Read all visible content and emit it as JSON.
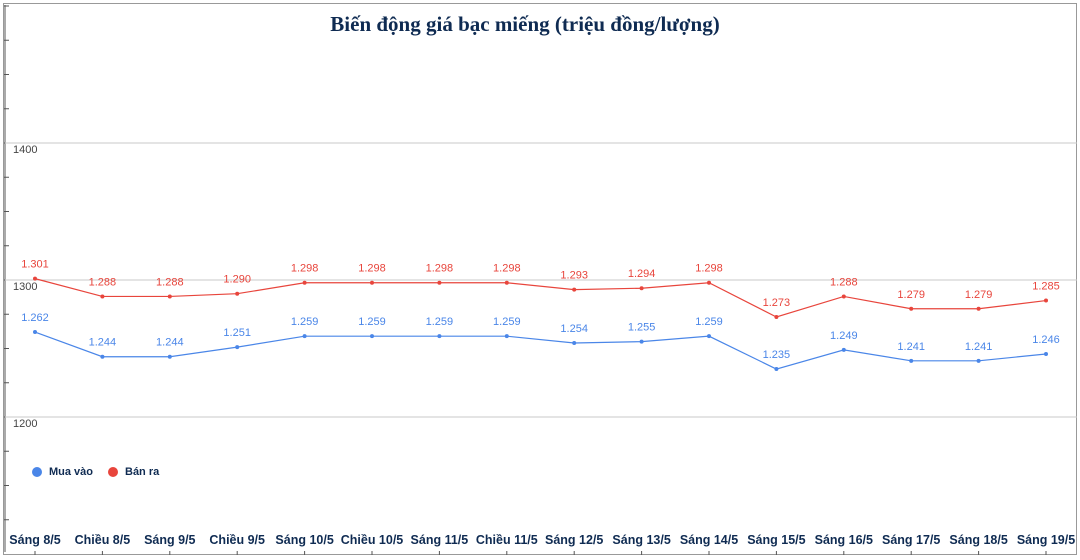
{
  "chart_data": {
    "type": "line",
    "title": "Biến động giá bạc miếng (triệu đồng/lượng)",
    "xlabel": "",
    "ylabel": "",
    "categories": [
      "Sáng 8/5",
      "Chiều 8/5",
      "Sáng 9/5",
      "Chiều 9/5",
      "Sáng 10/5",
      "Chiều 10/5",
      "Sáng 11/5",
      "Chiều 11/5",
      "Sáng 12/5",
      "Sáng 13/5",
      "Sáng 14/5",
      "Sáng 15/5",
      "Sáng 16/5",
      "Sáng 17/5",
      "Sáng 18/5",
      "Sáng 19/5"
    ],
    "yticks": [
      "1400",
      "1300",
      "1200"
    ],
    "ytick_values": [
      1400,
      1300,
      1200
    ],
    "grid": true,
    "legend_position": "bottom-left",
    "series": [
      {
        "name": "Mua vào",
        "color": "#4a86e8",
        "values": [
          1262,
          1244,
          1244,
          1251,
          1259,
          1259,
          1259,
          1259,
          1254,
          1255,
          1259,
          1235,
          1249,
          1241,
          1241,
          1246
        ],
        "labels": [
          "1.262",
          "1.244",
          "1.244",
          "1.251",
          "1.259",
          "1.259",
          "1.259",
          "1.259",
          "1.254",
          "1.255",
          "1.259",
          "1.235",
          "1.249",
          "1.241",
          "1.241",
          "1.246"
        ]
      },
      {
        "name": "Bán ra",
        "color": "#e8453c",
        "values": [
          1301,
          1288,
          1288,
          1290,
          1298,
          1298,
          1298,
          1298,
          1293,
          1294,
          1298,
          1273,
          1288,
          1279,
          1279,
          1285
        ],
        "labels": [
          "1.301",
          "1.288",
          "1.288",
          "1.290",
          "1.298",
          "1.298",
          "1.298",
          "1.298",
          "1.293",
          "1.294",
          "1.298",
          "1.273",
          "1.288",
          "1.279",
          "1.279",
          "1.285"
        ]
      }
    ]
  }
}
